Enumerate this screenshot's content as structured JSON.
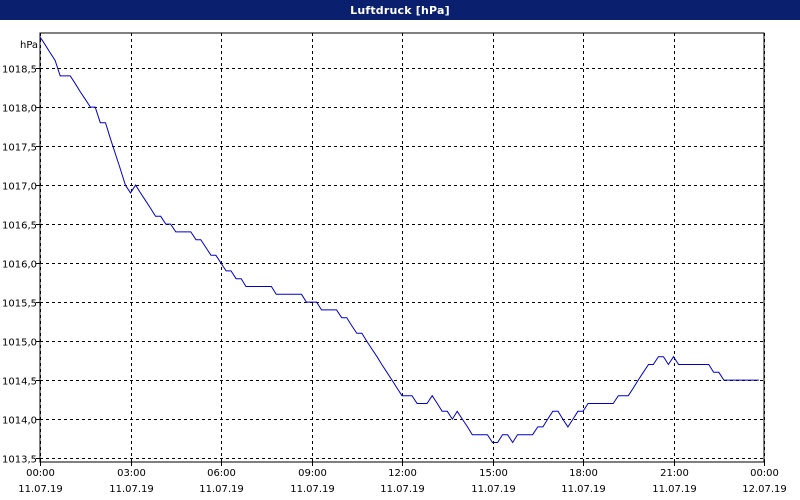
{
  "window": {
    "title": "Luftdruck [hPa]"
  },
  "chart_data": {
    "type": "line",
    "title": "Luftdruck [hPa]",
    "ylabel": "hPa",
    "xlabel": "",
    "ylim": [
      1013.45,
      1018.95
    ],
    "xlim": [
      0,
      24
    ],
    "grid": true,
    "line_color": "#0000cc",
    "y_ticks": [
      {
        "value": 1013.5,
        "label": "1013,5"
      },
      {
        "value": 1014.0,
        "label": "1014,0"
      },
      {
        "value": 1014.5,
        "label": "1014,5"
      },
      {
        "value": 1015.0,
        "label": "1015,0"
      },
      {
        "value": 1015.5,
        "label": "1015,5"
      },
      {
        "value": 1016.0,
        "label": "1016,0"
      },
      {
        "value": 1016.5,
        "label": "1016,5"
      },
      {
        "value": 1017.0,
        "label": "1017,0"
      },
      {
        "value": 1017.5,
        "label": "1017,5"
      },
      {
        "value": 1018.0,
        "label": "1018,0"
      },
      {
        "value": 1018.5,
        "label": "1018,5"
      }
    ],
    "x_ticks": [
      {
        "value": 0,
        "time": "00:00",
        "date": "11.07.19"
      },
      {
        "value": 3,
        "time": "03:00",
        "date": "11.07.19"
      },
      {
        "value": 6,
        "time": "06:00",
        "date": "11.07.19"
      },
      {
        "value": 9,
        "time": "09:00",
        "date": "11.07.19"
      },
      {
        "value": 12,
        "time": "12:00",
        "date": "11.07.19"
      },
      {
        "value": 15,
        "time": "15:00",
        "date": "11.07.19"
      },
      {
        "value": 18,
        "time": "18:00",
        "date": "11.07.19"
      },
      {
        "value": 21,
        "time": "21:00",
        "date": "11.07.19"
      },
      {
        "value": 24,
        "time": "00:00",
        "date": "12.07.19"
      }
    ],
    "series": [
      {
        "x": [
          0,
          0.17,
          0.33,
          0.5,
          0.67,
          0.83,
          1.0,
          1.17,
          1.33,
          1.5,
          1.67,
          1.83,
          2.0,
          2.17,
          2.33,
          2.5,
          2.67,
          2.83,
          3.0,
          3.17,
          3.33,
          3.5,
          3.67,
          3.83,
          4.0,
          4.17,
          4.33,
          4.5,
          4.67,
          4.83,
          5.0,
          5.17,
          5.33,
          5.5,
          5.67,
          5.83,
          6.0,
          6.17,
          6.33,
          6.5,
          6.67,
          6.83,
          7.0,
          7.17,
          7.33,
          7.5,
          7.67,
          7.83,
          8.0,
          8.17,
          8.33,
          8.5,
          8.67,
          8.83,
          9.0,
          9.17,
          9.33,
          9.5,
          9.67,
          9.83,
          10.0,
          10.17,
          10.33,
          10.5,
          10.67,
          10.83,
          11.0,
          11.17,
          11.33,
          11.5,
          11.67,
          11.83,
          12.0,
          12.17,
          12.33,
          12.5,
          12.67,
          12.83,
          13.0,
          13.17,
          13.33,
          13.5,
          13.67,
          13.83,
          14.0,
          14.17,
          14.33,
          14.5,
          14.67,
          14.83,
          15.0,
          15.17,
          15.33,
          15.5,
          15.67,
          15.83,
          16.0,
          16.17,
          16.33,
          16.5,
          16.67,
          16.83,
          17.0,
          17.17,
          17.33,
          17.5,
          17.67,
          17.83,
          18.0,
          18.17,
          18.33,
          18.5,
          18.67,
          18.83,
          19.0,
          19.17,
          19.33,
          19.5,
          19.67,
          19.83,
          20.0,
          20.17,
          20.33,
          20.5,
          20.67,
          20.83,
          21.0,
          21.17,
          21.33,
          21.5,
          21.67,
          21.83,
          22.0,
          22.17,
          22.33,
          22.5,
          22.67,
          22.83,
          23.0,
          23.17,
          23.33,
          23.5,
          23.67,
          23.83
        ],
        "y": [
          1018.9,
          1018.8,
          1018.7,
          1018.6,
          1018.4,
          1018.4,
          1018.4,
          1018.3,
          1018.2,
          1018.1,
          1018.0,
          1018.0,
          1017.8,
          1017.8,
          1017.6,
          1017.4,
          1017.2,
          1017.0,
          1016.9,
          1017.0,
          1016.9,
          1016.8,
          1016.7,
          1016.6,
          1016.6,
          1016.5,
          1016.5,
          1016.4,
          1016.4,
          1016.4,
          1016.4,
          1016.3,
          1016.3,
          1016.2,
          1016.1,
          1016.1,
          1016.0,
          1015.9,
          1015.9,
          1015.8,
          1015.8,
          1015.7,
          1015.7,
          1015.7,
          1015.7,
          1015.7,
          1015.7,
          1015.6,
          1015.6,
          1015.6,
          1015.6,
          1015.6,
          1015.6,
          1015.5,
          1015.5,
          1015.5,
          1015.4,
          1015.4,
          1015.4,
          1015.4,
          1015.3,
          1015.3,
          1015.2,
          1015.1,
          1015.1,
          1015.0,
          1014.9,
          1014.8,
          1014.7,
          1014.6,
          1014.5,
          1014.4,
          1014.3,
          1014.3,
          1014.3,
          1014.2,
          1014.2,
          1014.2,
          1014.3,
          1014.2,
          1014.1,
          1014.1,
          1014.0,
          1014.1,
          1014.0,
          1013.9,
          1013.8,
          1013.8,
          1013.8,
          1013.8,
          1013.7,
          1013.7,
          1013.8,
          1013.8,
          1013.7,
          1013.8,
          1013.8,
          1013.8,
          1013.8,
          1013.9,
          1013.9,
          1014.0,
          1014.1,
          1014.1,
          1014.0,
          1013.9,
          1014.0,
          1014.1,
          1014.1,
          1014.2,
          1014.2,
          1014.2,
          1014.2,
          1014.2,
          1014.2,
          1014.3,
          1014.3,
          1014.3,
          1014.4,
          1014.5,
          1014.6,
          1014.7,
          1014.7,
          1014.8,
          1014.8,
          1014.7,
          1014.8,
          1014.7,
          1014.7,
          1014.7,
          1014.7,
          1014.7,
          1014.7,
          1014.7,
          1014.6,
          1014.6,
          1014.5,
          1014.5,
          1014.5,
          1014.5,
          1014.5,
          1014.5,
          1014.5,
          1014.5
        ]
      }
    ]
  }
}
